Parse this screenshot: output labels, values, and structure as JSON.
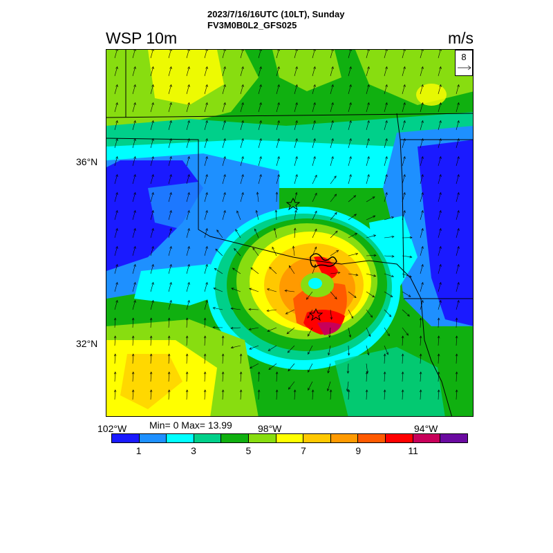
{
  "header": {
    "line1": "2023/7/16/16UTC (10LT), Sunday",
    "line2": "FV3M0B0L2_GFS025"
  },
  "variable": "WSP 10m",
  "units": "m/s",
  "reference_vector": {
    "label": "8"
  },
  "lat_labels": [
    "36°N",
    "32°N"
  ],
  "lon_labels": [
    "102°W",
    "98°W",
    "94°W"
  ],
  "stats": "Min= 0 Max= 13.99",
  "colorbar": {
    "colors": [
      "#1a1aff",
      "#1e90ff",
      "#00ffff",
      "#00d08a",
      "#10b010",
      "#88dd10",
      "#ffff00",
      "#ffc800",
      "#ff9a00",
      "#ff5a00",
      "#ff0000",
      "#c8005a",
      "#6a0aa0"
    ],
    "labels": [
      "1",
      "3",
      "5",
      "7",
      "9",
      "11"
    ]
  },
  "map_colors": {
    "blue": "#1a1aff",
    "lightblue": "#1e90ff",
    "cyan": "#00ffff",
    "teal": "#00d08a",
    "green": "#10b010",
    "lightgreen": "#88dd10",
    "yellow": "#ffff00",
    "orange": "#ffc800",
    "darkorange": "#ff9a00",
    "red": "#ff0000",
    "crimson": "#c8005a",
    "purple": "#6a0aa0"
  }
}
